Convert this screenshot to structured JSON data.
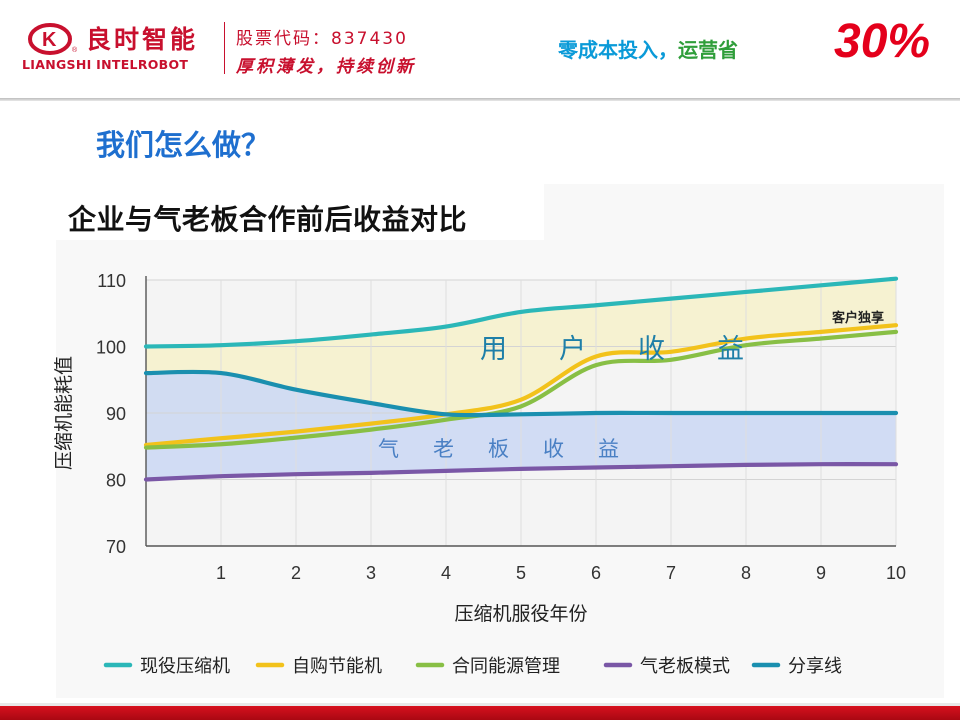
{
  "header": {
    "brand_cn": "良时智能",
    "brand_en": "LIANGSHI INTELROBOT",
    "stock_code": "股票代码：837430",
    "motto": "厚积薄发，持续创新",
    "slogan_part1": "零成本投入，",
    "slogan_part2": "运营省",
    "slogan_percent": "30%",
    "colors": {
      "brand_red": "#c8102e",
      "slogan_blue": "#0a9ad8",
      "slogan_green": "#2f9e3a",
      "percent_red": "#e4001b"
    }
  },
  "heading": "我们怎么做？",
  "chart_data": {
    "type": "line",
    "title": "企业与气老板合作前后收益对比",
    "xlabel": "压缩机服役年份",
    "ylabel": "压缩机能耗值",
    "xlim": [
      0,
      10
    ],
    "ylim": [
      70,
      110
    ],
    "x_ticks": [
      1,
      2,
      3,
      4,
      5,
      6,
      7,
      8,
      9,
      10
    ],
    "y_ticks": [
      70,
      80,
      90,
      100,
      110
    ],
    "grid": true,
    "legend_position": "bottom",
    "x": [
      0,
      1,
      2,
      3,
      4,
      5,
      6,
      7,
      8,
      9,
      10
    ],
    "series": [
      {
        "name": "现役压缩机",
        "color": "#2bb7b8",
        "values": [
          100,
          100.2,
          100.8,
          101.8,
          103,
          105.2,
          106.2,
          107.2,
          108.2,
          109.2,
          110.2
        ]
      },
      {
        "name": "自购节能机",
        "color": "#f2c21b",
        "values": [
          85.2,
          86.2,
          87.2,
          88.4,
          89.8,
          92,
          98.5,
          99.2,
          101.2,
          102.2,
          103.2
        ]
      },
      {
        "name": "合同能源管理",
        "color": "#88bf45",
        "values": [
          84.8,
          85.3,
          86.3,
          87.5,
          89,
          91,
          97.2,
          98,
          100.2,
          101.2,
          102.2
        ]
      },
      {
        "name": "气老板模式",
        "color": "#7a57a6",
        "values": [
          80,
          80.5,
          80.8,
          81,
          81.3,
          81.6,
          81.8,
          82,
          82.2,
          82.3,
          82.3
        ]
      },
      {
        "name": "分享线",
        "color": "#1a8faf",
        "values": [
          96,
          96,
          93.5,
          91.5,
          89.8,
          89.8,
          90,
          90,
          90,
          90,
          90
        ]
      }
    ],
    "annotations": [
      {
        "text": "用户收益",
        "color": "#1e7fa8"
      },
      {
        "text": "气老板收益",
        "color": "#4a80c4"
      },
      {
        "text": "客户独享",
        "color": "#222222"
      }
    ],
    "fill_colors": {
      "user_area": "#f6f1cf",
      "boss_area": "#cfdaf3"
    }
  }
}
